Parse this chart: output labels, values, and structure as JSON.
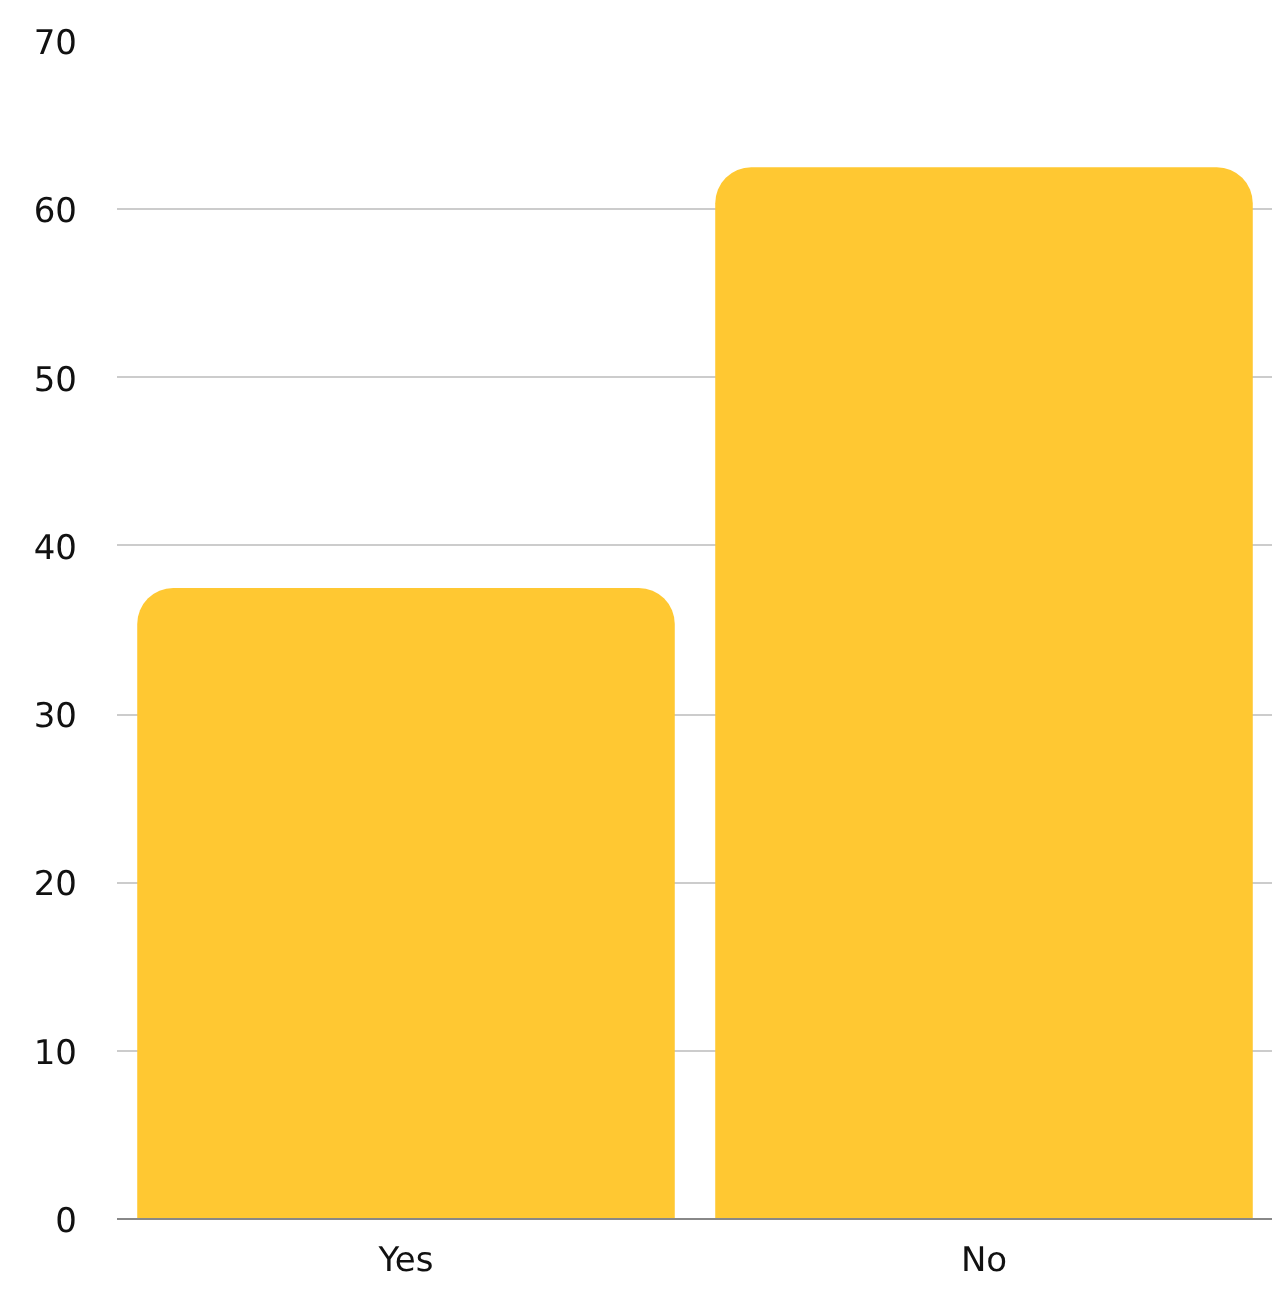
{
  "chart_data": {
    "type": "bar",
    "categories": [
      "Yes",
      "No"
    ],
    "values": [
      37.5,
      62.5
    ],
    "color": "#ffc832",
    "ylim": [
      0,
      70
    ],
    "yticks": [
      0,
      10,
      20,
      30,
      40,
      50,
      60,
      70
    ],
    "grid": "y"
  }
}
